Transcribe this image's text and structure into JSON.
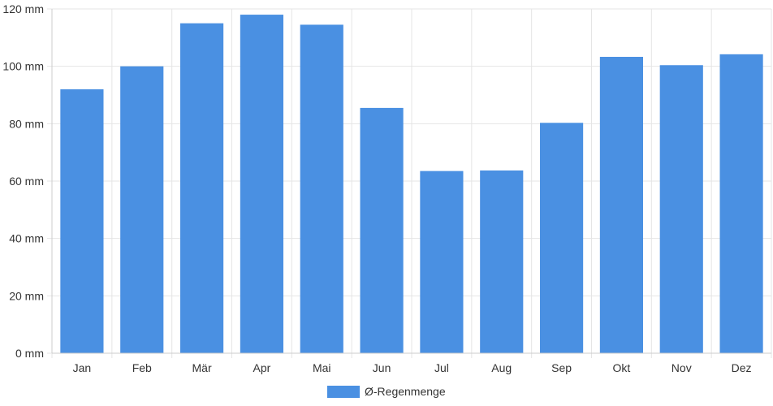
{
  "chart_data": {
    "type": "bar",
    "title": "",
    "xlabel": "",
    "ylabel": "",
    "categories": [
      "Jan",
      "Feb",
      "Mär",
      "Apr",
      "Mai",
      "Jun",
      "Jul",
      "Aug",
      "Sep",
      "Okt",
      "Nov",
      "Dez"
    ],
    "series": [
      {
        "name": "Ø-Regenmenge",
        "values": [
          92,
          100,
          115,
          118,
          114.5,
          85.5,
          63.5,
          63.7,
          80.3,
          103.3,
          100.4,
          104.2
        ]
      }
    ],
    "ylim": [
      0,
      120
    ],
    "yticks": [
      0,
      20,
      40,
      60,
      80,
      100,
      120
    ],
    "ytick_suffix": " mm",
    "grid": true,
    "legend_position": "bottom",
    "colors": {
      "bar": "#4a90e2",
      "grid": "#e5e5e5",
      "axis": "#cccccc",
      "text": "#333333"
    }
  }
}
